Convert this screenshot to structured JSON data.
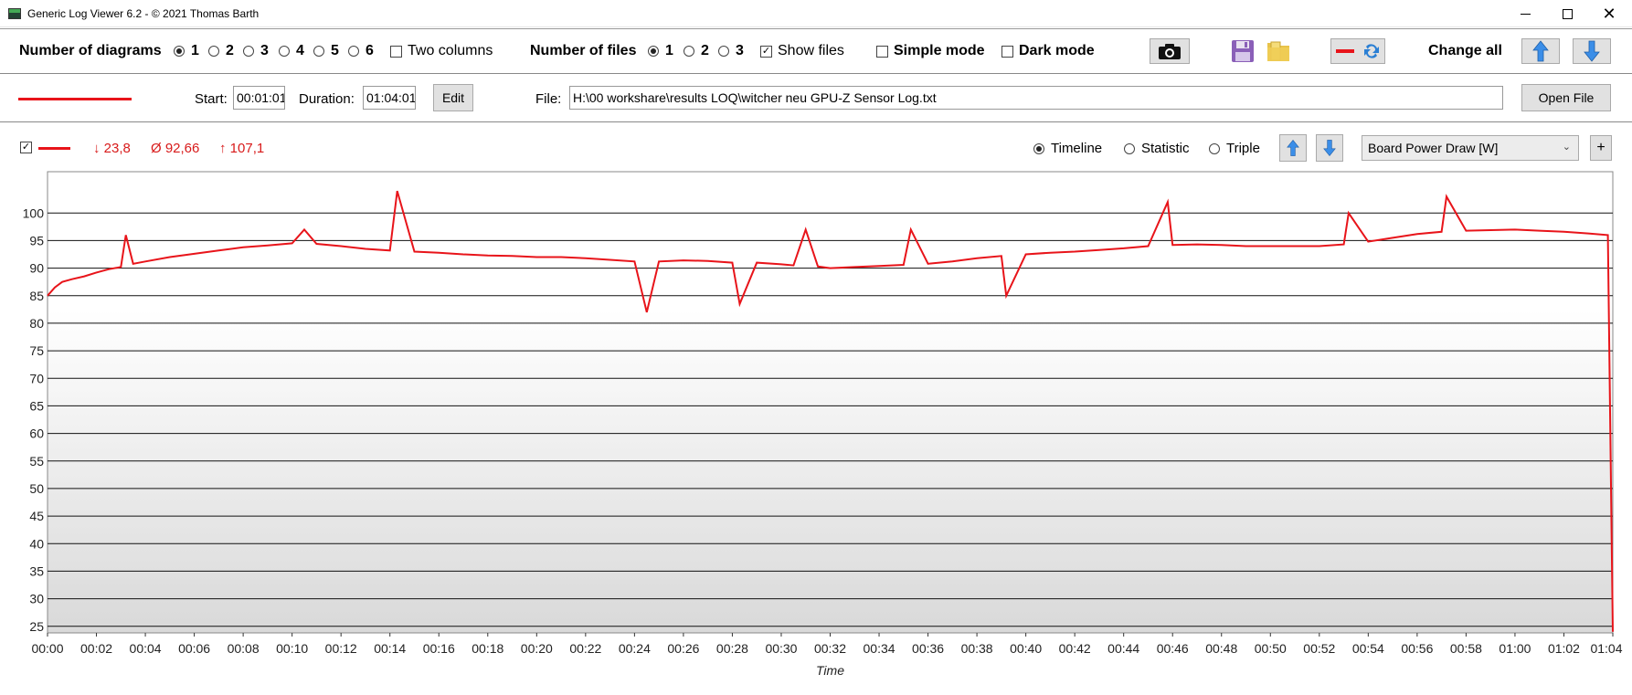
{
  "window": {
    "title": "Generic Log Viewer 6.2 - © 2021 Thomas Barth",
    "close_glyph": "✕"
  },
  "toolbar": {
    "diagrams_label": "Number of diagrams",
    "diagram_options": [
      "1",
      "2",
      "3",
      "4",
      "5",
      "6"
    ],
    "diagram_selected": "1",
    "two_columns_label": "Two columns",
    "files_label": "Number of files",
    "file_options": [
      "1",
      "2",
      "3"
    ],
    "file_selected": "1",
    "show_files_label": "Show files",
    "show_files_check": "✓",
    "simple_mode_label": "Simple mode",
    "dark_mode_label": "Dark mode",
    "change_all_label": "Change all"
  },
  "file_row": {
    "start_label": "Start:",
    "start_value": "00:01:01",
    "duration_label": "Duration:",
    "duration_value": "01:04:01",
    "edit_label": "Edit",
    "file_label": "File:",
    "file_path": "H:\\00 workshare\\results LOQ\\witcher neu GPU-Z Sensor Log.txt",
    "open_file_label": "Open File",
    "series_color": "#e8141a"
  },
  "diagram_header": {
    "enabled_check": "✓",
    "min_value": "↓ 23,8",
    "avg_value": "Ø 92,66",
    "max_value": "↑ 107,1",
    "view_options": [
      "Timeline",
      "Statistic",
      "Triple"
    ],
    "view_selected": "Timeline",
    "sensor_selected": "Board Power Draw [W]",
    "dropdown_arrow": "⌄",
    "add_label": "+"
  },
  "chart_data": {
    "type": "line",
    "xlabel": "Time",
    "ylabel": "",
    "x_ticks": [
      "00:00",
      "00:02",
      "00:04",
      "00:06",
      "00:08",
      "00:10",
      "00:12",
      "00:14",
      "00:16",
      "00:18",
      "00:20",
      "00:22",
      "00:24",
      "00:26",
      "00:28",
      "00:30",
      "00:32",
      "00:34",
      "00:36",
      "00:38",
      "00:40",
      "00:42",
      "00:44",
      "00:46",
      "00:48",
      "00:50",
      "00:52",
      "00:54",
      "00:56",
      "00:58",
      "01:00",
      "01:02",
      "01:04"
    ],
    "y_ticks": [
      25,
      30,
      35,
      40,
      45,
      50,
      55,
      60,
      65,
      70,
      75,
      80,
      85,
      90,
      95,
      100
    ],
    "ylim": [
      23.8,
      107.5
    ],
    "xlim_minutes": [
      0,
      64
    ],
    "grid": true,
    "series": [
      {
        "color": "#e8141a",
        "x_minutes": [
          0,
          0.3,
          0.6,
          1,
          1.5,
          2,
          2.5,
          3,
          3.2,
          3.5,
          4,
          5,
          6,
          7,
          8,
          9,
          10,
          10.5,
          11,
          12,
          13,
          14,
          14.3,
          15,
          16,
          17,
          18,
          19,
          20,
          21,
          22,
          23,
          24,
          24.5,
          25,
          26,
          27,
          28,
          28.3,
          29,
          30,
          30.5,
          31,
          31.5,
          32,
          33,
          34,
          35,
          35.3,
          36,
          37,
          38,
          39,
          39.2,
          40,
          41,
          42,
          43,
          44,
          45,
          45.8,
          46,
          47,
          48,
          49,
          50,
          51,
          52,
          53,
          53.2,
          54,
          55,
          56,
          57,
          57.2,
          58,
          59,
          60,
          61,
          62,
          63,
          63.8,
          64
        ],
        "y": [
          85,
          86.5,
          87.5,
          88,
          88.5,
          89.2,
          89.8,
          90.2,
          96,
          90.8,
          91.2,
          92,
          92.6,
          93.2,
          93.8,
          94.1,
          94.5,
          97,
          94.4,
          94,
          93.5,
          93.2,
          104,
          93,
          92.8,
          92.5,
          92.3,
          92.2,
          92,
          92,
          91.8,
          91.5,
          91.2,
          82,
          91.2,
          91.4,
          91.3,
          91,
          83.5,
          91,
          90.7,
          90.5,
          97,
          90.3,
          90,
          90.2,
          90.4,
          90.6,
          97,
          90.8,
          91.2,
          91.8,
          92.2,
          85,
          92.5,
          92.8,
          93,
          93.3,
          93.6,
          94,
          102,
          94.2,
          94.3,
          94.2,
          94,
          94,
          94,
          94,
          94.3,
          100,
          94.8,
          95.5,
          96.2,
          96.6,
          103,
          96.8,
          96.9,
          97,
          96.8,
          96.6,
          96.3,
          96,
          24
        ]
      }
    ]
  }
}
